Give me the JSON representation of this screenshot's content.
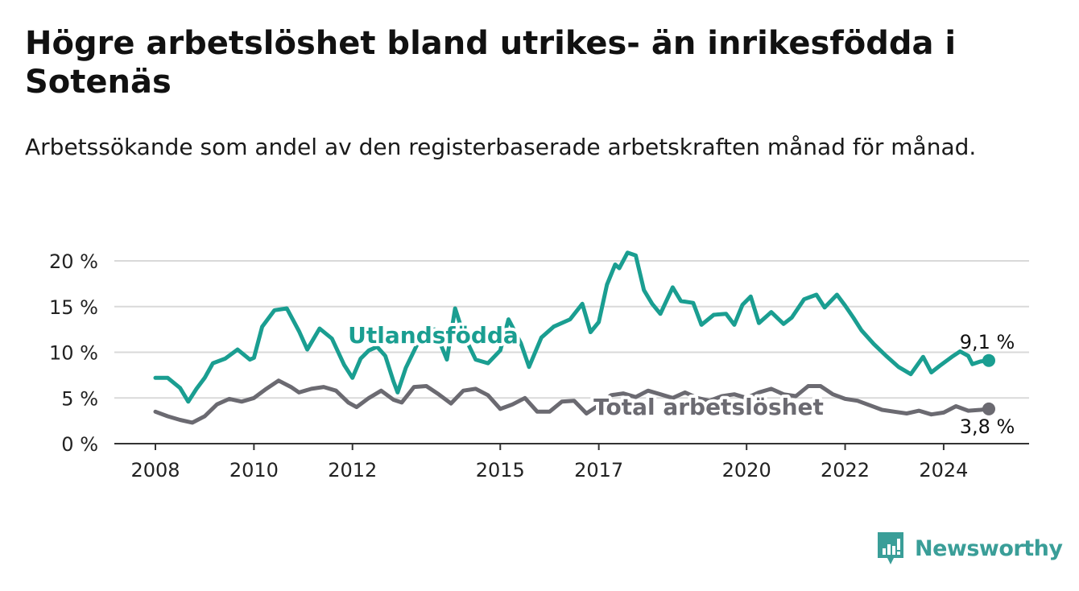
{
  "title": "Högre arbetslöshet bland utrikes- än inrikesfödda i Sotenäs",
  "subtitle": "Arbetssökande som andel av den registerbaserade arbetskraften månad för månad.",
  "brand": "Newsworthy",
  "colors": {
    "utlandsfodda": "#1a9e91",
    "total": "#6b6a71",
    "grid": "#d9d9d9",
    "axis": "#333333",
    "brand": "#3a9e98"
  },
  "chart_data": {
    "type": "line",
    "title": "Högre arbetslöshet bland utrikes- än inrikesfödda i Sotenäs",
    "subtitle": "Arbetssökande som andel av den registerbaserade arbetskraften månad för månad.",
    "xlabel": "",
    "ylabel": "",
    "x_ticks": [
      "2008",
      "2010",
      "2012",
      "2015",
      "2017",
      "2020",
      "2022",
      "2024"
    ],
    "y_ticks": [
      "0 %",
      "5 %",
      "10 %",
      "15 %",
      "20 %"
    ],
    "ylim": [
      0,
      20
    ],
    "xlim": [
      "2008-01",
      "2024-12"
    ],
    "grid": true,
    "series": [
      {
        "name": "Utlandsfödda",
        "end_label": "9,1 %",
        "points": [
          [
            "2008-01",
            7.2
          ],
          [
            "2008-04",
            7.2
          ],
          [
            "2008-07",
            6.1
          ],
          [
            "2008-09",
            4.6
          ],
          [
            "2008-11",
            6.0
          ],
          [
            "2009-01",
            7.2
          ],
          [
            "2009-03",
            8.8
          ],
          [
            "2009-06",
            9.3
          ],
          [
            "2009-09",
            10.3
          ],
          [
            "2009-12",
            9.2
          ],
          [
            "2010-01",
            9.4
          ],
          [
            "2010-03",
            12.8
          ],
          [
            "2010-06",
            14.6
          ],
          [
            "2010-09",
            14.8
          ],
          [
            "2010-12",
            12.3
          ],
          [
            "2011-02",
            10.3
          ],
          [
            "2011-05",
            12.6
          ],
          [
            "2011-08",
            11.5
          ],
          [
            "2011-11",
            8.6
          ],
          [
            "2012-01",
            7.2
          ],
          [
            "2012-03",
            9.3
          ],
          [
            "2012-05",
            10.2
          ],
          [
            "2012-07",
            10.6
          ],
          [
            "2012-09",
            9.6
          ],
          [
            "2012-11",
            6.8
          ],
          [
            "2012-12",
            5.6
          ],
          [
            "2013-02",
            8.3
          ],
          [
            "2013-06",
            12.0
          ],
          [
            "2013-09",
            12.5
          ],
          [
            "2013-12",
            9.2
          ],
          [
            "2014-02",
            14.8
          ],
          [
            "2014-04",
            12.0
          ],
          [
            "2014-07",
            9.2
          ],
          [
            "2014-10",
            8.8
          ],
          [
            "2015-01",
            10.2
          ],
          [
            "2015-03",
            13.6
          ],
          [
            "2015-06",
            11.0
          ],
          [
            "2015-08",
            8.4
          ],
          [
            "2015-11",
            11.6
          ],
          [
            "2016-02",
            12.8
          ],
          [
            "2016-06",
            13.6
          ],
          [
            "2016-09",
            15.3
          ],
          [
            "2016-11",
            12.2
          ],
          [
            "2017-01",
            13.3
          ],
          [
            "2017-03",
            17.4
          ],
          [
            "2017-05",
            19.6
          ],
          [
            "2017-06",
            19.2
          ],
          [
            "2017-08",
            20.9
          ],
          [
            "2017-10",
            20.6
          ],
          [
            "2017-12",
            16.8
          ],
          [
            "2018-02",
            15.3
          ],
          [
            "2018-04",
            14.2
          ],
          [
            "2018-07",
            17.1
          ],
          [
            "2018-09",
            15.6
          ],
          [
            "2018-12",
            15.4
          ],
          [
            "2019-02",
            13.0
          ],
          [
            "2019-05",
            14.1
          ],
          [
            "2019-08",
            14.2
          ],
          [
            "2019-10",
            13.0
          ],
          [
            "2019-12",
            15.2
          ],
          [
            "2020-02",
            16.1
          ],
          [
            "2020-04",
            13.2
          ],
          [
            "2020-07",
            14.4
          ],
          [
            "2020-10",
            13.1
          ],
          [
            "2020-12",
            13.8
          ],
          [
            "2021-03",
            15.8
          ],
          [
            "2021-06",
            16.3
          ],
          [
            "2021-08",
            14.9
          ],
          [
            "2021-11",
            16.3
          ],
          [
            "2022-01",
            15.1
          ],
          [
            "2022-03",
            13.8
          ],
          [
            "2022-05",
            12.4
          ],
          [
            "2022-08",
            10.9
          ],
          [
            "2022-11",
            9.6
          ],
          [
            "2023-02",
            8.4
          ],
          [
            "2023-05",
            7.6
          ],
          [
            "2023-08",
            9.5
          ],
          [
            "2023-10",
            7.8
          ],
          [
            "2023-12",
            8.5
          ],
          [
            "2024-03",
            9.5
          ],
          [
            "2024-05",
            10.1
          ],
          [
            "2024-07",
            9.6
          ],
          [
            "2024-08",
            8.7
          ],
          [
            "2024-10",
            9.0
          ],
          [
            "2024-12",
            9.1
          ]
        ]
      },
      {
        "name": "Total arbetslöshet",
        "end_label": "3,8 %",
        "points": [
          [
            "2008-01",
            3.5
          ],
          [
            "2008-04",
            3.0
          ],
          [
            "2008-07",
            2.6
          ],
          [
            "2008-10",
            2.3
          ],
          [
            "2009-01",
            3.0
          ],
          [
            "2009-04",
            4.3
          ],
          [
            "2009-07",
            4.9
          ],
          [
            "2009-10",
            4.6
          ],
          [
            "2010-01",
            5.0
          ],
          [
            "2010-04",
            6.0
          ],
          [
            "2010-07",
            6.9
          ],
          [
            "2010-10",
            6.2
          ],
          [
            "2010-12",
            5.6
          ],
          [
            "2011-03",
            6.0
          ],
          [
            "2011-06",
            6.2
          ],
          [
            "2011-09",
            5.8
          ],
          [
            "2011-12",
            4.5
          ],
          [
            "2012-02",
            4.0
          ],
          [
            "2012-05",
            5.0
          ],
          [
            "2012-08",
            5.8
          ],
          [
            "2012-11",
            4.8
          ],
          [
            "2013-01",
            4.5
          ],
          [
            "2013-04",
            6.2
          ],
          [
            "2013-07",
            6.3
          ],
          [
            "2013-10",
            5.4
          ],
          [
            "2014-01",
            4.4
          ],
          [
            "2014-04",
            5.8
          ],
          [
            "2014-07",
            6.0
          ],
          [
            "2014-10",
            5.3
          ],
          [
            "2015-01",
            3.8
          ],
          [
            "2015-04",
            4.3
          ],
          [
            "2015-07",
            5.0
          ],
          [
            "2015-10",
            3.5
          ],
          [
            "2016-01",
            3.5
          ],
          [
            "2016-04",
            4.6
          ],
          [
            "2016-07",
            4.7
          ],
          [
            "2016-10",
            3.3
          ],
          [
            "2017-01",
            4.2
          ],
          [
            "2017-04",
            5.3
          ],
          [
            "2017-07",
            5.5
          ],
          [
            "2017-10",
            5.1
          ],
          [
            "2018-01",
            5.8
          ],
          [
            "2018-04",
            5.4
          ],
          [
            "2018-07",
            5.0
          ],
          [
            "2018-10",
            5.6
          ],
          [
            "2019-01",
            5.0
          ],
          [
            "2019-04",
            4.7
          ],
          [
            "2019-07",
            5.2
          ],
          [
            "2019-10",
            5.4
          ],
          [
            "2020-01",
            5.0
          ],
          [
            "2020-04",
            5.6
          ],
          [
            "2020-07",
            6.0
          ],
          [
            "2020-10",
            5.4
          ],
          [
            "2021-01",
            5.2
          ],
          [
            "2021-04",
            6.3
          ],
          [
            "2021-07",
            6.3
          ],
          [
            "2021-10",
            5.4
          ],
          [
            "2022-01",
            4.9
          ],
          [
            "2022-04",
            4.7
          ],
          [
            "2022-07",
            4.2
          ],
          [
            "2022-10",
            3.7
          ],
          [
            "2023-01",
            3.5
          ],
          [
            "2023-04",
            3.3
          ],
          [
            "2023-07",
            3.6
          ],
          [
            "2023-10",
            3.2
          ],
          [
            "2024-01",
            3.4
          ],
          [
            "2024-04",
            4.1
          ],
          [
            "2024-07",
            3.6
          ],
          [
            "2024-10",
            3.7
          ],
          [
            "2024-12",
            3.8
          ]
        ]
      }
    ]
  }
}
